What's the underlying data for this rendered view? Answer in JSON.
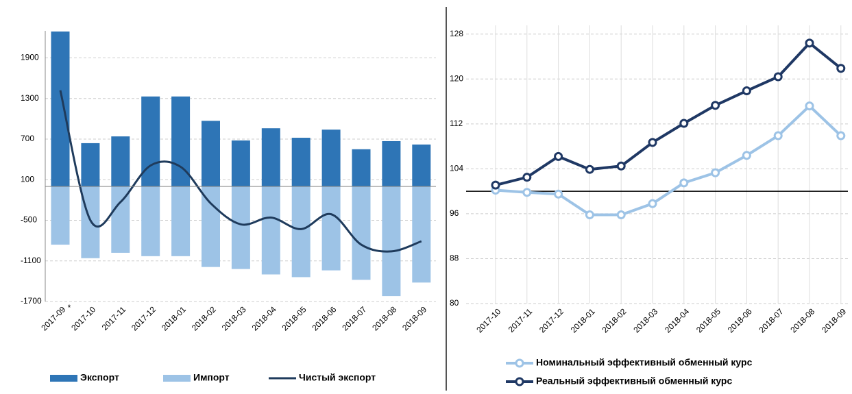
{
  "chart_data": [
    {
      "type": "bar",
      "categories": [
        "2017-09",
        "2017-10",
        "2017-11",
        "2017-12",
        "2018-01",
        "2018-02",
        "2018-03",
        "2018-04",
        "2018-05",
        "2018-06",
        "2018-07",
        "2018-08",
        "2018-09"
      ],
      "annotation": "*",
      "series": [
        {
          "name": "Экспорт",
          "type": "bar",
          "color": "#2e75b6",
          "values": [
            2290,
            640,
            740,
            1330,
            1330,
            970,
            680,
            860,
            720,
            840,
            550,
            670,
            620
          ]
        },
        {
          "name": "Импорт",
          "type": "bar",
          "color": "#9dc3e6",
          "values": [
            -860,
            -1060,
            -980,
            -1030,
            -1030,
            -1190,
            -1220,
            -1300,
            -1340,
            -1240,
            -1380,
            -1620,
            -1420
          ]
        },
        {
          "name": "Чистый экспорт",
          "type": "line",
          "smooth": true,
          "color": "#1f3b5c",
          "values": [
            1420,
            -500,
            -230,
            310,
            290,
            -250,
            -560,
            -460,
            -630,
            -410,
            -860,
            -960,
            -810
          ]
        }
      ],
      "ylim": [
        -1700,
        2300
      ],
      "yticks": [
        -1700,
        -1100,
        -500,
        100,
        700,
        1300,
        1900
      ],
      "grid": true,
      "legend": "bottom"
    },
    {
      "type": "line",
      "categories": [
        "2017-10",
        "2017-11",
        "2017-12",
        "2018-01",
        "2018-02",
        "2018-03",
        "2018-04",
        "2018-05",
        "2018-06",
        "2018-07",
        "2018-08",
        "2018-09"
      ],
      "series": [
        {
          "name": "Номинальный эффективный обменный курс",
          "color": "#9dc3e6",
          "values": [
            100.2,
            99.8,
            99.5,
            95.8,
            95.8,
            97.8,
            101.5,
            103.3,
            106.4,
            109.9,
            115.2,
            109.9
          ]
        },
        {
          "name": "Реальный эффективный обменный курс",
          "color": "#1f3864",
          "values": [
            101.1,
            102.5,
            106.2,
            103.9,
            104.5,
            108.7,
            112.1,
            115.3,
            117.9,
            120.4,
            126.4,
            121.9
          ]
        }
      ],
      "x_axis_at": 100,
      "ylim": [
        80,
        132
      ],
      "yticks": [
        80,
        88,
        96,
        104,
        112,
        120,
        128
      ],
      "grid": true,
      "legend": "bottom"
    }
  ]
}
